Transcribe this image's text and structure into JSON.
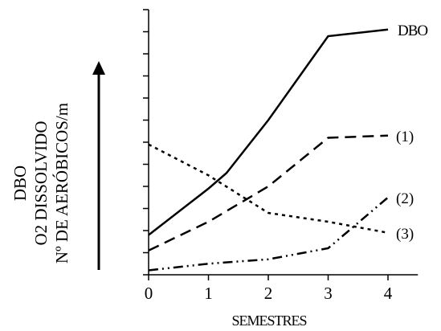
{
  "chart_data": {
    "type": "line",
    "title": "",
    "xlabel": "SEMESTRES",
    "ylabel_lines": [
      "DBO",
      "O2 DISSOLVIDO",
      "Nº DE AERÓBICOS/m"
    ],
    "x_ticks": [
      0,
      1,
      2,
      3,
      4
    ],
    "xlim": [
      0,
      4.5
    ],
    "ylim": [
      0,
      12
    ],
    "y_tick_count": 13,
    "y_tick_labels": false,
    "grid": false,
    "legend": "inline-right",
    "arrow": "up",
    "series": [
      {
        "name": "DBO",
        "style": "solid",
        "x": [
          0,
          1,
          1.3,
          2,
          3,
          4
        ],
        "y": [
          1.8,
          3.9,
          4.6,
          7.0,
          10.8,
          11.1
        ]
      },
      {
        "name": "(1)",
        "style": "dash",
        "x": [
          0,
          1,
          2,
          3,
          4
        ],
        "y": [
          1.1,
          2.4,
          4.0,
          6.2,
          6.3
        ]
      },
      {
        "name": "(2)",
        "style": "dashdotdot",
        "x": [
          0,
          1,
          2,
          3,
          4
        ],
        "y": [
          0.2,
          0.5,
          0.7,
          1.2,
          3.5
        ]
      },
      {
        "name": "(3)",
        "style": "dot",
        "x": [
          0,
          1,
          2,
          3,
          4
        ],
        "y": [
          5.9,
          4.5,
          2.8,
          2.4,
          1.9
        ]
      }
    ],
    "colors": {
      "line": "#000000"
    }
  }
}
